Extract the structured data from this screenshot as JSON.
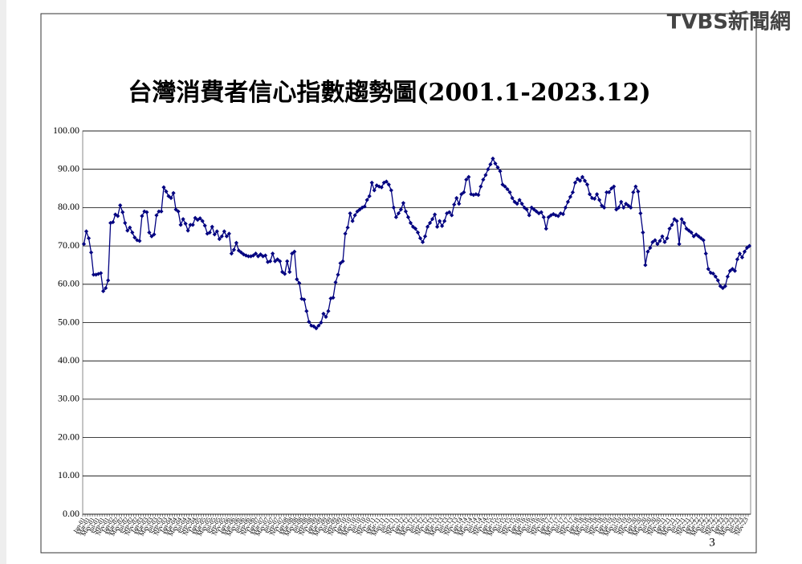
{
  "logo": "TVBS新聞網",
  "page_number": "3",
  "chart_data": {
    "type": "line",
    "title": "台灣消費者信心指數趨勢圖(2001.1-2023.12)",
    "categories": [
      "Jan-01",
      null,
      "Mar-01",
      null,
      "May-01",
      null,
      "Jul-01",
      null,
      "Sep-01",
      null,
      "Nov-01",
      null,
      "Jan-02",
      null,
      "Mar-02",
      null,
      "May-02",
      null,
      "Jul-02",
      null,
      "Sep-02",
      null,
      "Nov-02",
      null,
      "Jan-03",
      null,
      "Mar-03",
      null,
      "May-03",
      null,
      "Jul-03",
      null,
      "Sep-03",
      null,
      "Nov-03",
      null,
      "Jan-04",
      null,
      "Mar-04",
      null,
      "May-04",
      null,
      "Jul-04",
      null,
      "Sep-04",
      null,
      "Nov-04",
      null,
      "Jan-05",
      null,
      "Mar-05",
      null,
      "May-05",
      null,
      "Jul-05",
      null,
      "Sep-05",
      null,
      "Nov-05",
      null,
      "Jan-06",
      null,
      "Mar-06",
      null,
      "May-06",
      null,
      "Jul-06",
      null,
      "Sep-06",
      null,
      "Nov-06",
      null,
      "Jan-07",
      null,
      "Mar-07",
      null,
      "May-07",
      null,
      "Jul-07",
      null,
      "Sep-07",
      null,
      "Nov-07",
      null,
      "Jan-08",
      null,
      "Mar-08",
      null,
      "May-08",
      null,
      "Jul-08",
      null,
      "Sep-08",
      null,
      "Nov-08",
      null,
      "Jan-09",
      null,
      "Mar-09",
      null,
      "May-09",
      null,
      "Jul-09",
      null,
      "Sep-09",
      null,
      "Nov-09",
      null,
      "Jan-10",
      null,
      "Mar-10",
      null,
      "May-10",
      null,
      "Jul-10",
      null,
      "Sep-10",
      null,
      "Nov-10",
      null,
      "Jan-11",
      null,
      "Mar-11",
      null,
      "May-11",
      null,
      "Jul-11",
      null,
      "Sep-11",
      null,
      "Nov-11",
      null,
      "Jan-12",
      null,
      "Mar-12",
      null,
      "May-12",
      null,
      "Jul-12",
      null,
      "Sep-12",
      null,
      "Nov-12",
      null,
      "Jan-13",
      null,
      "Mar-13",
      null,
      "May-13",
      null,
      "Jul-13",
      null,
      "Sep-13",
      null,
      "Nov-13",
      null,
      "Jan-14",
      null,
      "Mar-14",
      null,
      "May-14",
      null,
      "Jul-14",
      null,
      "Sep-14",
      null,
      "Nov-14",
      null,
      "Jan-15",
      null,
      "Mar-15",
      null,
      "May-15",
      null,
      "Jul-15",
      null,
      "Sep-15",
      null,
      "Nov-15",
      null,
      "Jan-16",
      null,
      "Mar-16",
      null,
      "May-16",
      null,
      "Jul-16",
      null,
      "Sep-16",
      null,
      "Nov-16",
      null,
      "Jan-17",
      null,
      "Mar-17",
      null,
      "May-17",
      null,
      "Jul-17",
      null,
      "Sep-17",
      null,
      "Nov-17",
      null,
      "Jan-18",
      null,
      "Mar-18",
      null,
      "May-18",
      null,
      "Jul-18",
      null,
      "Sep-18",
      null,
      "Nov-18",
      null,
      "Jan-19",
      null,
      "Mar-19",
      null,
      "May-19",
      null,
      "Jul-19",
      null,
      "Sep-19",
      null,
      "Nov-19",
      null,
      "Jan-20",
      null,
      "Mar-20",
      null,
      "May-20",
      null,
      "Jul-20",
      null,
      "Sep-20",
      null,
      "Nov-20",
      null,
      "Jan-21",
      null,
      "Mar-21",
      null,
      "May-21",
      null,
      "Jul-21",
      null,
      "Sep-21",
      null,
      "Nov-21",
      null,
      "Jan-22",
      null,
      "Mar-22",
      null,
      "May-22",
      null,
      "Jul-22",
      null,
      "Sep-22",
      null,
      "Nov-22",
      null,
      "Jan-23",
      null,
      "Mar-23",
      null,
      "May-23",
      null,
      "Jul-23",
      null,
      "Sep-23",
      null,
      "Nov-23",
      null
    ],
    "series": [
      {
        "color": "#000080",
        "values": [
          70.5,
          73.8,
          72.0,
          68.3,
          62.5,
          62.5,
          62.7,
          62.9,
          58.2,
          59.0,
          61.0,
          76.0,
          76.2,
          78.2,
          77.8,
          80.6,
          78.8,
          76.0,
          74.0,
          74.8,
          73.5,
          72.2,
          71.5,
          71.3,
          77.8,
          79.0,
          78.8,
          73.5,
          72.5,
          73.0,
          78.0,
          79.0,
          79.0,
          85.3,
          84.2,
          83.0,
          82.5,
          83.8,
          79.5,
          79.0,
          75.5,
          77.0,
          75.8,
          74.0,
          75.5,
          75.5,
          77.3,
          76.8,
          77.2,
          76.5,
          75.3,
          73.2,
          73.5,
          75.0,
          73.0,
          73.8,
          71.8,
          72.5,
          73.8,
          72.5,
          73.2,
          68.0,
          69.0,
          70.8,
          68.8,
          68.3,
          67.8,
          67.5,
          67.3,
          67.3,
          67.5,
          68.0,
          67.3,
          67.8,
          67.3,
          67.5,
          65.8,
          66.0,
          68.0,
          66.0,
          66.5,
          66.0,
          63.2,
          62.7,
          66.0,
          63.2,
          68.0,
          68.5,
          61.3,
          60.3,
          56.2,
          56.0,
          53.0,
          50.2,
          49.2,
          49.0,
          48.5,
          49.2,
          50.0,
          52.3,
          51.5,
          53.0,
          56.3,
          56.5,
          60.5,
          62.5,
          65.5,
          66.0,
          73.2,
          74.8,
          78.5,
          76.5,
          78.0,
          79.0,
          79.5,
          80.0,
          80.3,
          82.0,
          83.0,
          86.5,
          84.5,
          85.8,
          85.5,
          85.3,
          86.5,
          86.8,
          86.0,
          84.5,
          80.0,
          77.5,
          78.5,
          79.5,
          81.2,
          79.0,
          77.5,
          76.0,
          75.0,
          74.5,
          73.5,
          72.0,
          71.0,
          72.5,
          75.0,
          76.0,
          77.0,
          78.2,
          75.0,
          76.5,
          75.2,
          76.5,
          78.5,
          78.8,
          78.0,
          80.8,
          82.5,
          81.0,
          83.5,
          84.0,
          87.3,
          88.0,
          83.5,
          83.3,
          83.5,
          83.3,
          85.5,
          87.3,
          88.5,
          90.0,
          91.3,
          92.8,
          91.5,
          90.5,
          89.5,
          86.0,
          85.5,
          84.8,
          84.0,
          82.5,
          81.5,
          81.0,
          82.0,
          81.0,
          80.0,
          79.5,
          78.0,
          80.0,
          79.5,
          79.0,
          78.5,
          78.8,
          77.5,
          74.5,
          77.5,
          78.0,
          78.3,
          78.0,
          77.8,
          78.5,
          78.3,
          80.0,
          81.5,
          82.8,
          84.0,
          86.5,
          87.5,
          87.0,
          88.0,
          87.0,
          86.0,
          83.5,
          82.5,
          82.3,
          83.5,
          82.0,
          80.5,
          80.0,
          84.0,
          84.0,
          85.0,
          85.5,
          79.5,
          80.0,
          81.5,
          80.0,
          81.0,
          80.5,
          80.0,
          84.0,
          85.5,
          84.2,
          78.5,
          73.5,
          65.0,
          68.5,
          69.5,
          71.0,
          71.5,
          70.5,
          71.3,
          72.5,
          71.0,
          72.0,
          74.5,
          75.5,
          77.0,
          76.5,
          70.5,
          77.0,
          76.0,
          74.5,
          74.0,
          73.5,
          72.5,
          73.0,
          72.5,
          72.0,
          71.5,
          68.0,
          64.0,
          63.0,
          62.8,
          62.0,
          61.0,
          59.5,
          59.0,
          59.5,
          62.0,
          63.5,
          64.0,
          63.5,
          66.5,
          68.0,
          67.0,
          68.5,
          69.5,
          70.0
        ]
      }
    ],
    "ylim": [
      0,
      100
    ],
    "yticks": [
      {
        "value": 0,
        "label": "0.00"
      },
      {
        "value": 10,
        "label": "10.00"
      },
      {
        "value": 20,
        "label": "20.00"
      },
      {
        "value": 30,
        "label": "30.00"
      },
      {
        "value": 40,
        "label": "40.00"
      },
      {
        "value": 50,
        "label": "50.00"
      },
      {
        "value": 60,
        "label": "60.00"
      },
      {
        "value": 70,
        "label": "70.00"
      },
      {
        "value": 80,
        "label": "80.00"
      },
      {
        "value": 90,
        "label": "90.00"
      },
      {
        "value": 100,
        "label": "100.00"
      }
    ],
    "grid": true
  }
}
